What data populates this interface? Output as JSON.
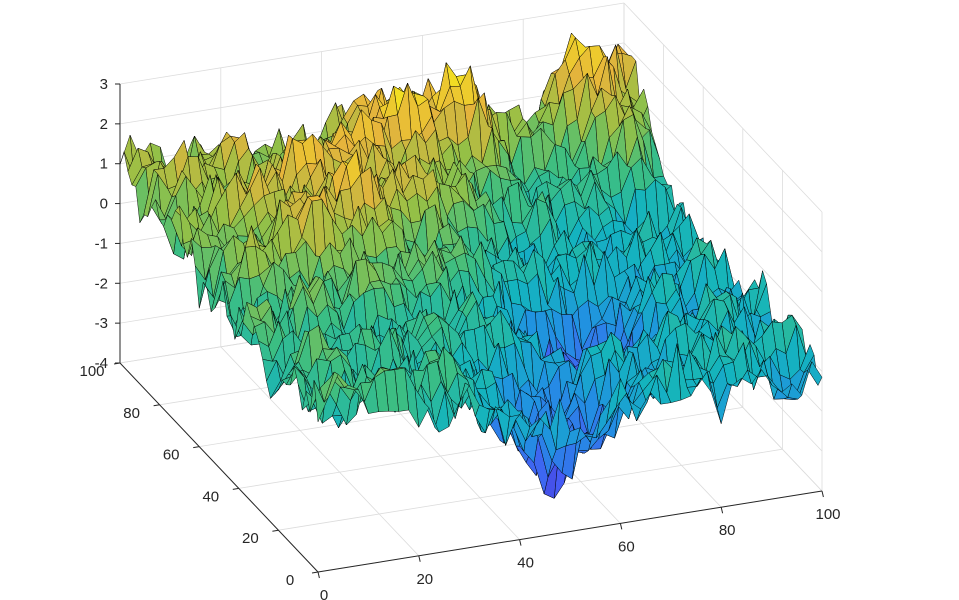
{
  "chart_data": {
    "type": "surface",
    "title": "",
    "xlabel": "",
    "ylabel": "",
    "zlabel": "",
    "xlim": [
      0,
      100
    ],
    "ylim": [
      0,
      100
    ],
    "zlim": [
      -4,
      3
    ],
    "x_ticks": [
      "0",
      "20",
      "40",
      "60",
      "80",
      "100"
    ],
    "y_ticks": [
      "0",
      "20",
      "40",
      "60",
      "80",
      "100"
    ],
    "z_ticks": [
      "3",
      "2",
      "1",
      "0",
      "-1",
      "-2",
      "-3",
      "-4"
    ],
    "grid": true,
    "colormap": "parula",
    "edge_color": "#000000",
    "grid_resolution": 50,
    "surface_features": [
      {
        "kind": "ridge",
        "x": 10,
        "y": 95,
        "z": 1.3
      },
      {
        "kind": "ridge",
        "x": 22,
        "y": 65,
        "z": 1.6
      },
      {
        "kind": "ridge",
        "x": 35,
        "y": 70,
        "z": 1.9
      },
      {
        "kind": "peak",
        "x": 50,
        "y": 88,
        "z": 2.5
      },
      {
        "kind": "peak",
        "x": 62,
        "y": 88,
        "z": 2.3
      },
      {
        "kind": "peak",
        "x": 92,
        "y": 92,
        "z": 2.9
      },
      {
        "kind": "valley",
        "x": 68,
        "y": 38,
        "z": -3.6
      },
      {
        "kind": "valley",
        "x": 52,
        "y": 12,
        "z": -3.3
      }
    ]
  }
}
